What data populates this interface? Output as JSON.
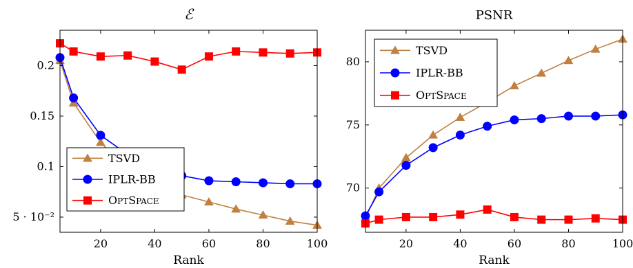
{
  "chart_data": [
    {
      "type": "line",
      "title": "ℰ",
      "xlabel": "Rank",
      "ylabel": "",
      "xlim": [
        5,
        100
      ],
      "ylim": [
        0.035,
        0.235
      ],
      "xticks": [
        20,
        40,
        60,
        80,
        100
      ],
      "xtick_labels": [
        "20",
        "40",
        "60",
        "80",
        "100"
      ],
      "yticks": [
        0.05,
        0.1,
        0.15,
        0.2
      ],
      "ytick_labels": [
        "5 · 10⁻²",
        "0.1",
        "0.15",
        "0.2"
      ],
      "legend_position": "bottom-left",
      "series": [
        {
          "name": "TSVD",
          "color": "#bf8040",
          "marker": "triangle",
          "x": [
            5,
            10,
            20,
            30,
            40,
            50,
            60,
            70,
            80,
            90,
            100
          ],
          "values": [
            0.205,
            0.163,
            0.124,
            0.097,
            0.082,
            0.072,
            0.065,
            0.058,
            0.052,
            0.046,
            0.042
          ]
        },
        {
          "name": "IPLR-BB",
          "color": "#0000ff",
          "marker": "circle",
          "x": [
            5,
            10,
            20,
            30,
            40,
            50,
            60,
            70,
            80,
            90,
            100
          ],
          "values": [
            0.208,
            0.168,
            0.131,
            0.112,
            0.098,
            0.091,
            0.086,
            0.085,
            0.084,
            0.083,
            0.083
          ]
        },
        {
          "name": "OptSpace",
          "color": "#ff0000",
          "marker": "square",
          "x": [
            5,
            10,
            20,
            30,
            40,
            50,
            60,
            70,
            80,
            90,
            100
          ],
          "values": [
            0.222,
            0.214,
            0.209,
            0.21,
            0.204,
            0.196,
            0.209,
            0.214,
            0.213,
            0.212,
            0.213
          ]
        }
      ]
    },
    {
      "type": "line",
      "title": "PSNR",
      "xlabel": "Rank",
      "ylabel": "",
      "xlim": [
        5,
        100
      ],
      "ylim": [
        66.5,
        82.5
      ],
      "xticks": [
        20,
        40,
        60,
        80,
        100
      ],
      "xtick_labels": [
        "20",
        "40",
        "60",
        "80",
        "100"
      ],
      "yticks": [
        70,
        75,
        80
      ],
      "ytick_labels": [
        "70",
        "75",
        "80"
      ],
      "legend_position": "top-left",
      "series": [
        {
          "name": "TSVD",
          "color": "#bf8040",
          "marker": "triangle",
          "x": [
            5,
            10,
            20,
            30,
            40,
            50,
            60,
            70,
            80,
            90,
            100
          ],
          "values": [
            67.6,
            70.0,
            72.4,
            74.2,
            75.6,
            76.8,
            78.1,
            79.1,
            80.1,
            81.0,
            81.8
          ]
        },
        {
          "name": "IPLR-BB",
          "color": "#0000ff",
          "marker": "circle",
          "x": [
            5,
            10,
            20,
            30,
            40,
            50,
            60,
            70,
            80,
            90,
            100
          ],
          "values": [
            67.8,
            69.7,
            71.8,
            73.2,
            74.2,
            74.9,
            75.4,
            75.5,
            75.7,
            75.7,
            75.8
          ]
        },
        {
          "name": "OptSpace",
          "color": "#ff0000",
          "marker": "square",
          "x": [
            5,
            10,
            20,
            30,
            40,
            50,
            60,
            70,
            80,
            90,
            100
          ],
          "values": [
            67.2,
            67.5,
            67.7,
            67.7,
            67.9,
            68.3,
            67.7,
            67.5,
            67.5,
            67.6,
            67.5
          ]
        }
      ]
    }
  ]
}
